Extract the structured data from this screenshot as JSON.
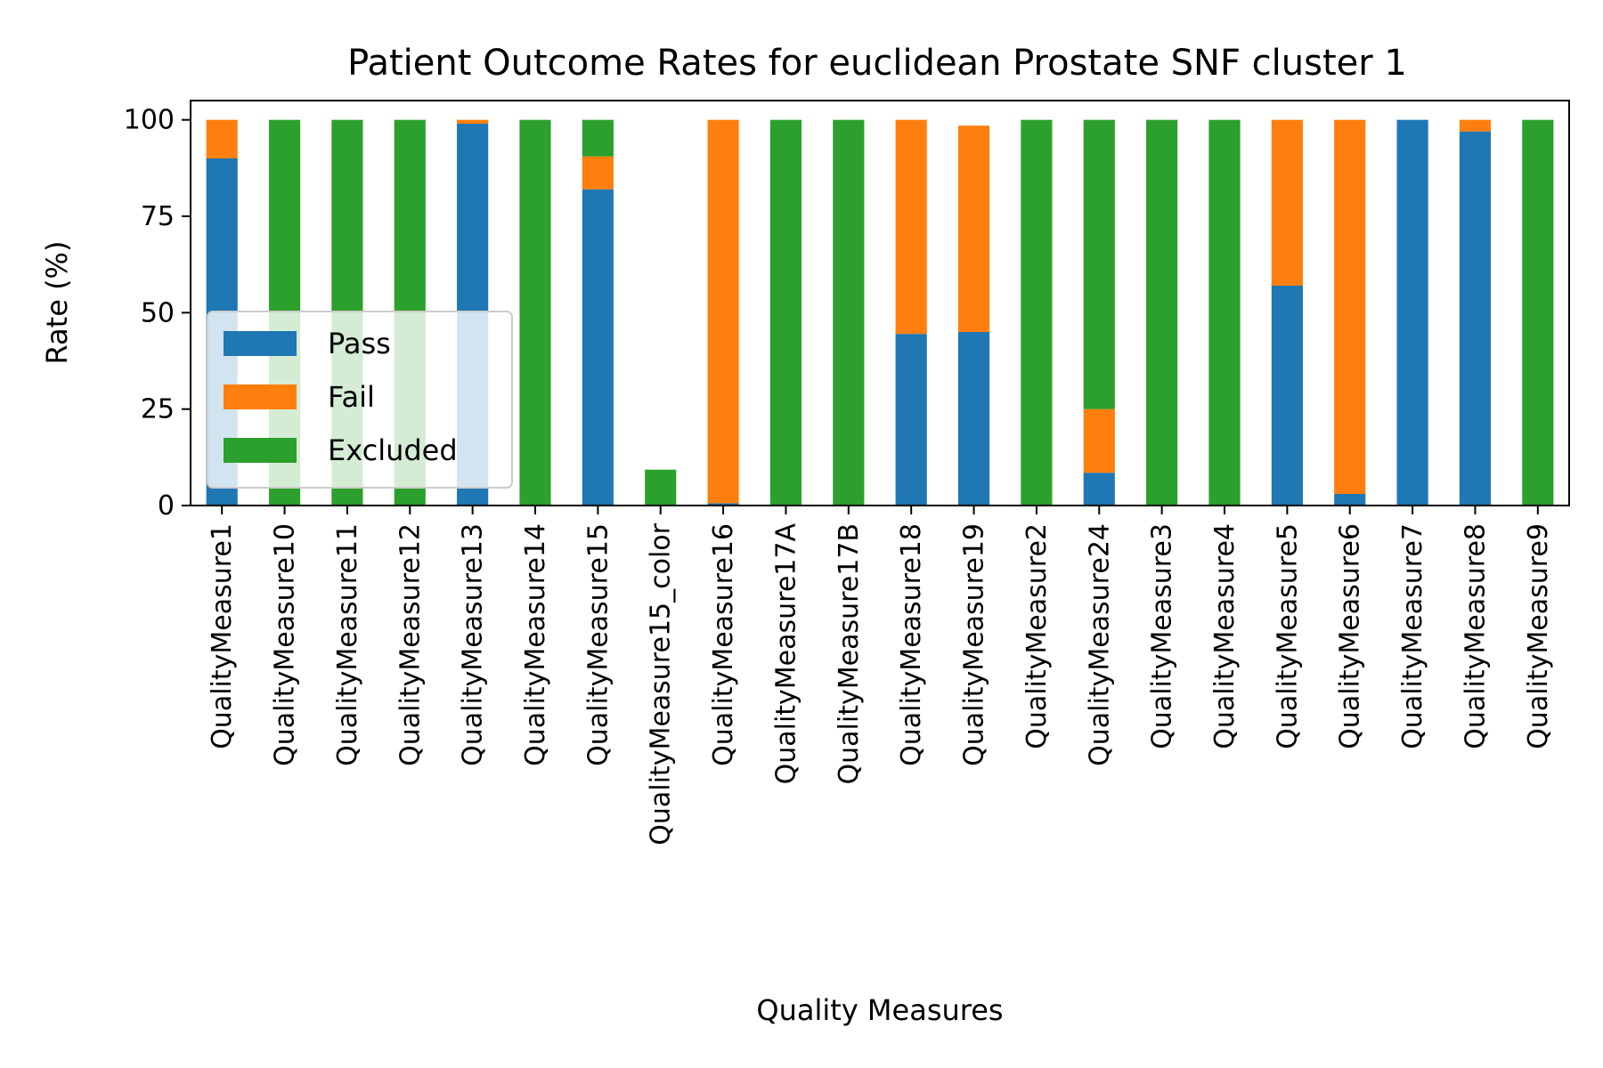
{
  "chart_data": {
    "type": "bar",
    "stacked": true,
    "title": "Patient Outcome Rates for euclidean Prostate SNF cluster 1",
    "xlabel": "Quality Measures",
    "ylabel": "Rate (%)",
    "ylim": [
      0,
      105
    ],
    "yticks": [
      0,
      25,
      50,
      75,
      100
    ],
    "grid": false,
    "legend_position": "center-left",
    "categories": [
      "QualityMeasure1",
      "QualityMeasure10",
      "QualityMeasure11",
      "QualityMeasure12",
      "QualityMeasure13",
      "QualityMeasure14",
      "QualityMeasure15",
      "QualityMeasure15_color",
      "QualityMeasure16",
      "QualityMeasure17A",
      "QualityMeasure17B",
      "QualityMeasure18",
      "QualityMeasure19",
      "QualityMeasure2",
      "QualityMeasure24",
      "QualityMeasure3",
      "QualityMeasure4",
      "QualityMeasure5",
      "QualityMeasure6",
      "QualityMeasure7",
      "QualityMeasure8",
      "QualityMeasure9"
    ],
    "series": [
      {
        "name": "Pass",
        "color": "#1f77b4",
        "values": [
          90,
          0,
          0,
          0,
          99,
          0,
          82,
          0,
          0.6,
          0,
          0,
          44.5,
          45,
          0,
          8.5,
          0,
          0,
          57,
          3,
          100,
          97,
          0
        ]
      },
      {
        "name": "Fail",
        "color": "#ff7f0e",
        "values": [
          10,
          0,
          0,
          0,
          1,
          0,
          8.5,
          0,
          99.4,
          0,
          0,
          55.5,
          53.5,
          0,
          16.5,
          0,
          0,
          43,
          97,
          0,
          3,
          0
        ]
      },
      {
        "name": "Excluded",
        "color": "#2ca02c",
        "values": [
          0,
          100,
          100,
          100,
          0,
          100,
          9.5,
          9.3,
          0,
          100,
          100,
          0,
          0,
          100,
          75,
          100,
          100,
          0,
          0,
          0,
          0,
          100
        ]
      }
    ]
  }
}
